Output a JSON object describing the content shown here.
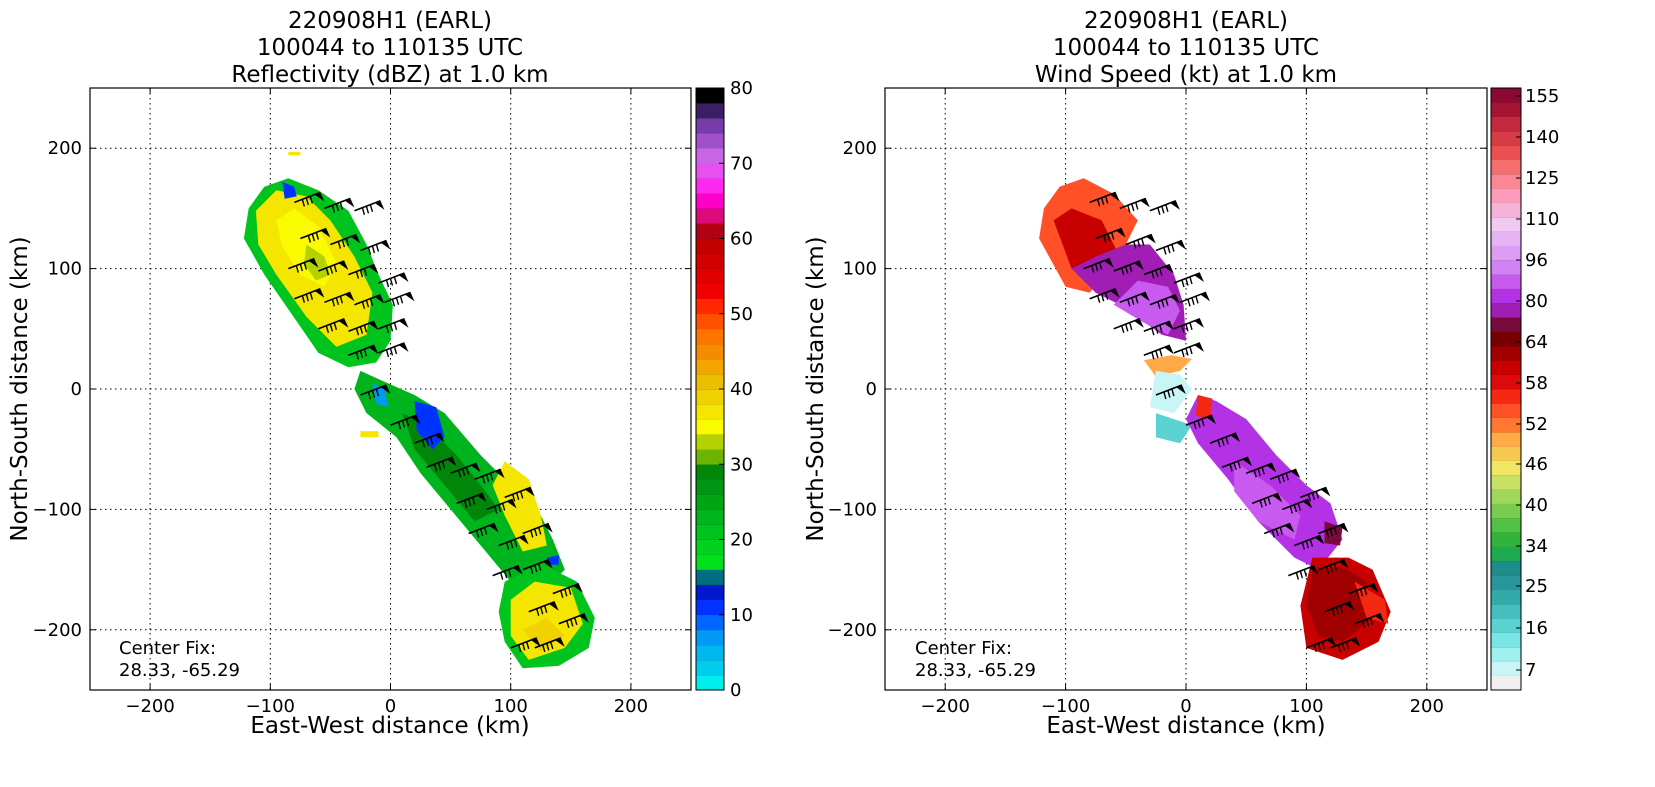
{
  "panels": [
    {
      "title_lines": [
        "220908H1 (EARL)",
        "100044 to 110135 UTC",
        "Reflectivity (dBZ) at 1.0 km"
      ],
      "center_fix_label": "Center Fix:",
      "center_fix_value": "28.33, -65.29",
      "colorbar": {
        "ticks": [
          0,
          10,
          20,
          30,
          40,
          50,
          60,
          70,
          80
        ],
        "colors": [
          "#00eeee",
          "#00cded",
          "#00b7f0",
          "#0099f5",
          "#0066ff",
          "#0033ff",
          "#0019cc",
          "#006e82",
          "#00e11e",
          "#00d21e",
          "#00c31e",
          "#00b41e",
          "#00a514",
          "#009614",
          "#00870a",
          "#6cb400",
          "#b4d200",
          "#fafa00",
          "#f5e600",
          "#f0d200",
          "#ebbe00",
          "#f5a500",
          "#f58c00",
          "#ff7300",
          "#ff5000",
          "#ff2800",
          "#f00000",
          "#e10000",
          "#d20000",
          "#c30000",
          "#b40014",
          "#dc0a78",
          "#ff00c8",
          "#ff28f0",
          "#e650f0",
          "#c864e6",
          "#a050c8",
          "#783caa",
          "#3c1e64",
          "#000000"
        ]
      }
    },
    {
      "title_lines": [
        "220908H1 (EARL)",
        "100044 to 110135 UTC",
        "Wind Speed (kt) at 1.0 km"
      ],
      "center_fix_label": "Center Fix:",
      "center_fix_value": "28.33, -65.29",
      "colorbar": {
        "tick_labels": [
          "7",
          "16",
          "25",
          "34",
          "40",
          "46",
          "52",
          "58",
          "64",
          "80",
          "96",
          "110",
          "125",
          "140",
          "155"
        ],
        "colors": [
          "#f0f0f0",
          "#c8f5f5",
          "#a0f0f0",
          "#78e6e6",
          "#5ad2d2",
          "#46bebe",
          "#32aaaa",
          "#28969b",
          "#1e8c8c",
          "#1eaa50",
          "#32b43c",
          "#50c346",
          "#78cd50",
          "#a0d75a",
          "#c8e164",
          "#f0e664",
          "#f5c850",
          "#ffaa46",
          "#ff7832",
          "#ff5028",
          "#f52814",
          "#dc0a0a",
          "#c80000",
          "#a00000",
          "#780000",
          "#780a3c",
          "#a01eb4",
          "#b432e6",
          "#c85af0",
          "#d282f5",
          "#dc9ef5",
          "#e6b4f5",
          "#f0c8f0",
          "#f5b4d7",
          "#fa9bb9",
          "#fa8791",
          "#f56e6e",
          "#eb5050",
          "#d73c46",
          "#c3283c",
          "#a51432",
          "#8c0a32"
        ]
      }
    }
  ],
  "chart_data": [
    {
      "type": "heatmap",
      "title": "220908H1 (EARL) 100044 to 110135 UTC Reflectivity (dBZ) at 1.0 km",
      "xlabel": "East-West distance (km)",
      "ylabel": "North-South distance (km)",
      "xlim": [
        -250,
        250
      ],
      "ylim": [
        -250,
        250
      ],
      "xticks": [
        -200,
        -100,
        0,
        100,
        200
      ],
      "yticks": [
        -200,
        -100,
        0,
        100,
        200
      ],
      "grid": true,
      "colorbar_label": "dBZ",
      "colorbar_range": [
        0,
        80
      ],
      "annotation": "Center Fix: 28.33, -65.29"
    },
    {
      "type": "heatmap",
      "title": "220908H1 (EARL) 100044 to 110135 UTC Wind Speed (kt) at 1.0 km",
      "xlabel": "East-West distance (km)",
      "ylabel": "North-South distance (km)",
      "xlim": [
        -250,
        250
      ],
      "ylim": [
        -250,
        250
      ],
      "xticks": [
        -200,
        -100,
        0,
        100,
        200
      ],
      "yticks": [
        -200,
        -100,
        0,
        100,
        200
      ],
      "grid": true,
      "colorbar_label": "kt",
      "colorbar_ticks": [
        7,
        16,
        25,
        34,
        40,
        46,
        52,
        58,
        64,
        80,
        96,
        110,
        125,
        140,
        155
      ],
      "annotation": "Center Fix: 28.33, -65.29"
    }
  ]
}
